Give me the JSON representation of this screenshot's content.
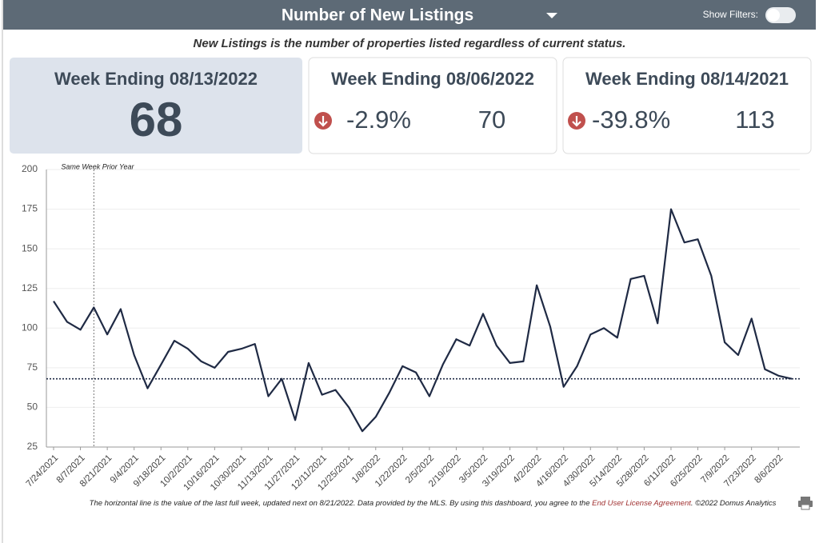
{
  "header": {
    "title": "Number of New Listings",
    "filters_label": "Show Filters:"
  },
  "subtitle": "New Listings is the number of properties listed regardless of current status.",
  "cards": [
    {
      "title": "Week Ending 08/13/2022",
      "value": "68"
    },
    {
      "title": "Week Ending 08/06/2022",
      "change": "-2.9%",
      "value": "70"
    },
    {
      "title": "Week Ending 08/14/2021",
      "change": "-39.8%",
      "value": "113"
    }
  ],
  "chart_data": {
    "type": "line",
    "color": "#1f2a44",
    "categories": [
      "7/24/2021",
      null,
      "8/7/2021",
      null,
      "8/21/2021",
      null,
      "9/4/2021",
      null,
      "9/18/2021",
      null,
      "10/2/2021",
      null,
      "10/16/2021",
      null,
      "10/30/2021",
      null,
      "11/13/2021",
      null,
      "11/27/2021",
      null,
      "12/11/2021",
      null,
      "12/25/2021",
      null,
      "1/8/2022",
      null,
      "1/22/2022",
      null,
      "2/5/2022",
      null,
      "2/19/2022",
      null,
      "3/5/2022",
      null,
      "3/19/2022",
      null,
      "4/2/2022",
      null,
      "4/16/2022",
      null,
      "4/30/2022",
      null,
      "5/14/2022",
      null,
      "5/28/2022",
      null,
      "6/11/2022",
      null,
      "6/25/2022",
      null,
      "7/9/2022",
      null,
      "7/23/2022",
      null,
      "8/6/2022",
      null
    ],
    "values": [
      117,
      104,
      99,
      113,
      96,
      112,
      83,
      62,
      77,
      92,
      87,
      79,
      75,
      85,
      87,
      90,
      57,
      68,
      42,
      78,
      58,
      61,
      50,
      35,
      44,
      59,
      76,
      72,
      57,
      77,
      93,
      89,
      109,
      89,
      78,
      79,
      127,
      101,
      63,
      76,
      96,
      100,
      94,
      131,
      133,
      103,
      175,
      154,
      156,
      133,
      91,
      83,
      106,
      74,
      70,
      68
    ],
    "ylim": [
      25,
      200
    ],
    "yticks": [
      25,
      50,
      75,
      100,
      125,
      150,
      175,
      200
    ],
    "grid": true,
    "hline": 68,
    "annotations": [
      {
        "text": "Same Week Prior Year",
        "index": 3
      }
    ]
  },
  "footer": {
    "text": "The horizontal line is the value of the last full week, updated next on 8/21/2022.  Data provided by the MLS. By using this dashboard, you agree to the ",
    "link": "End User License Agreement",
    "suffix": ".  ©2022 Domus Analytics"
  }
}
